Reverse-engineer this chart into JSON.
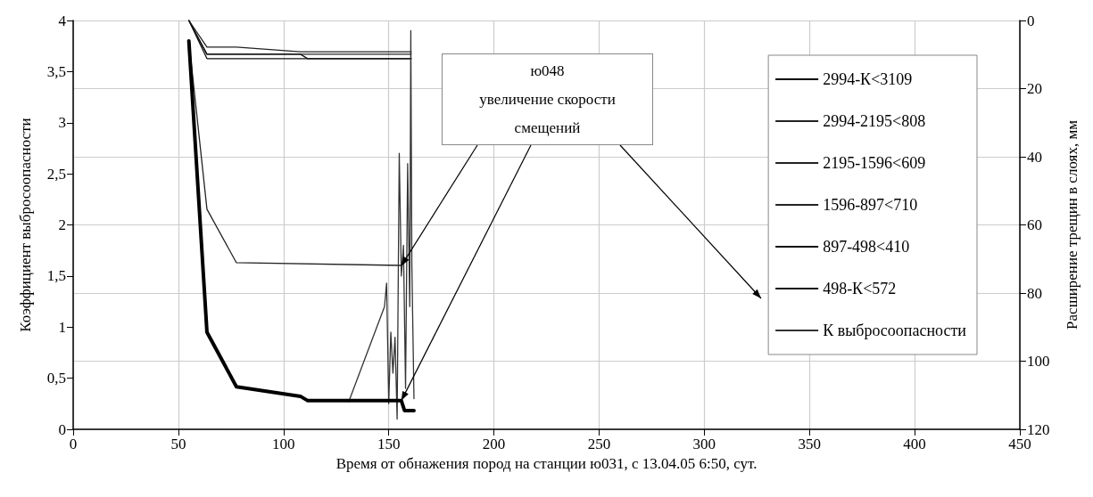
{
  "chart_data": {
    "type": "line",
    "xlabel": "Время от обнажения пород на станции ю031, с 13.04.05 6:50, сут.",
    "ylabel": "Коэффициент выбросоопасности",
    "y2label": "Расширение трещин в слоях, мм",
    "xlim": [
      0,
      450
    ],
    "xticks": [
      0,
      50,
      100,
      150,
      200,
      250,
      300,
      350,
      400,
      450
    ],
    "ylim": [
      0,
      4
    ],
    "yticks": [
      0,
      {
        "value": 0.5,
        "label": "0,5"
      },
      1,
      {
        "value": 1.5,
        "label": "1,5"
      },
      2,
      {
        "value": 2.5,
        "label": "2,5"
      },
      3,
      {
        "value": 3.5,
        "label": "3,5"
      },
      4
    ],
    "y2lim": [
      120,
      0
    ],
    "y2ticks": [
      0,
      20,
      40,
      60,
      80,
      100,
      120
    ],
    "grid": true,
    "legend": "right",
    "line_style": "solid",
    "annotations": [
      {
        "text": "ю048\nувеличение скорости\nсмещений",
        "x": 156,
        "y": 1.6
      }
    ],
    "series": [
      {
        "name": "2994-К<3109",
        "color": "#000000",
        "axis": "y2",
        "x": [
          55,
          63.6,
          77.6,
          108,
          111.5,
          156,
          157.5,
          162
        ],
        "values": [
          6,
          91.5,
          107.5,
          110.3,
          111.6,
          111.6,
          114.5,
          114.5
        ]
      },
      {
        "name": "2994-2195<808",
        "color": "#222222",
        "axis": "y2",
        "x": [
          55,
          63.6,
          77.6,
          156
        ],
        "values": [
          6,
          55.4,
          71.1,
          71.9
        ]
      },
      {
        "name": "2195-1596<609",
        "color": "#222222",
        "axis": "y2",
        "x": [
          55,
          63.6,
          77.6,
          108,
          160.7
        ],
        "values": [
          0,
          7.8,
          7.8,
          9.2,
          9.2
        ]
      },
      {
        "name": "1596-897<710",
        "color": "#222222",
        "axis": "y2",
        "x": [
          55,
          63.6,
          160.7
        ],
        "values": [
          0,
          9.9,
          9.9
        ]
      },
      {
        "name": "897-498<410",
        "color": "#111111",
        "axis": "y2",
        "x": [
          55,
          63.6,
          108,
          111.5,
          160.7
        ],
        "values": [
          0,
          9.9,
          9.9,
          11.2,
          11.2
        ]
      },
      {
        "name": "498-К<572",
        "color": "#111111",
        "axis": "y2",
        "x": [
          55,
          63.6,
          160.7
        ],
        "values": [
          0,
          11.2,
          11.2
        ]
      },
      {
        "name": "К выбросоопасности",
        "color": "#333333",
        "x": [
          131,
          148,
          149,
          150,
          151,
          152,
          153,
          154,
          155,
          156,
          157,
          158,
          159,
          160,
          160.5,
          161,
          162
        ],
        "values": [
          0.27,
          1.2,
          1.43,
          0.25,
          0.95,
          0.55,
          0.9,
          0.1,
          2.7,
          1.5,
          1.8,
          0.4,
          2.6,
          1.2,
          3.9,
          1.6,
          0.3
        ]
      }
    ]
  }
}
